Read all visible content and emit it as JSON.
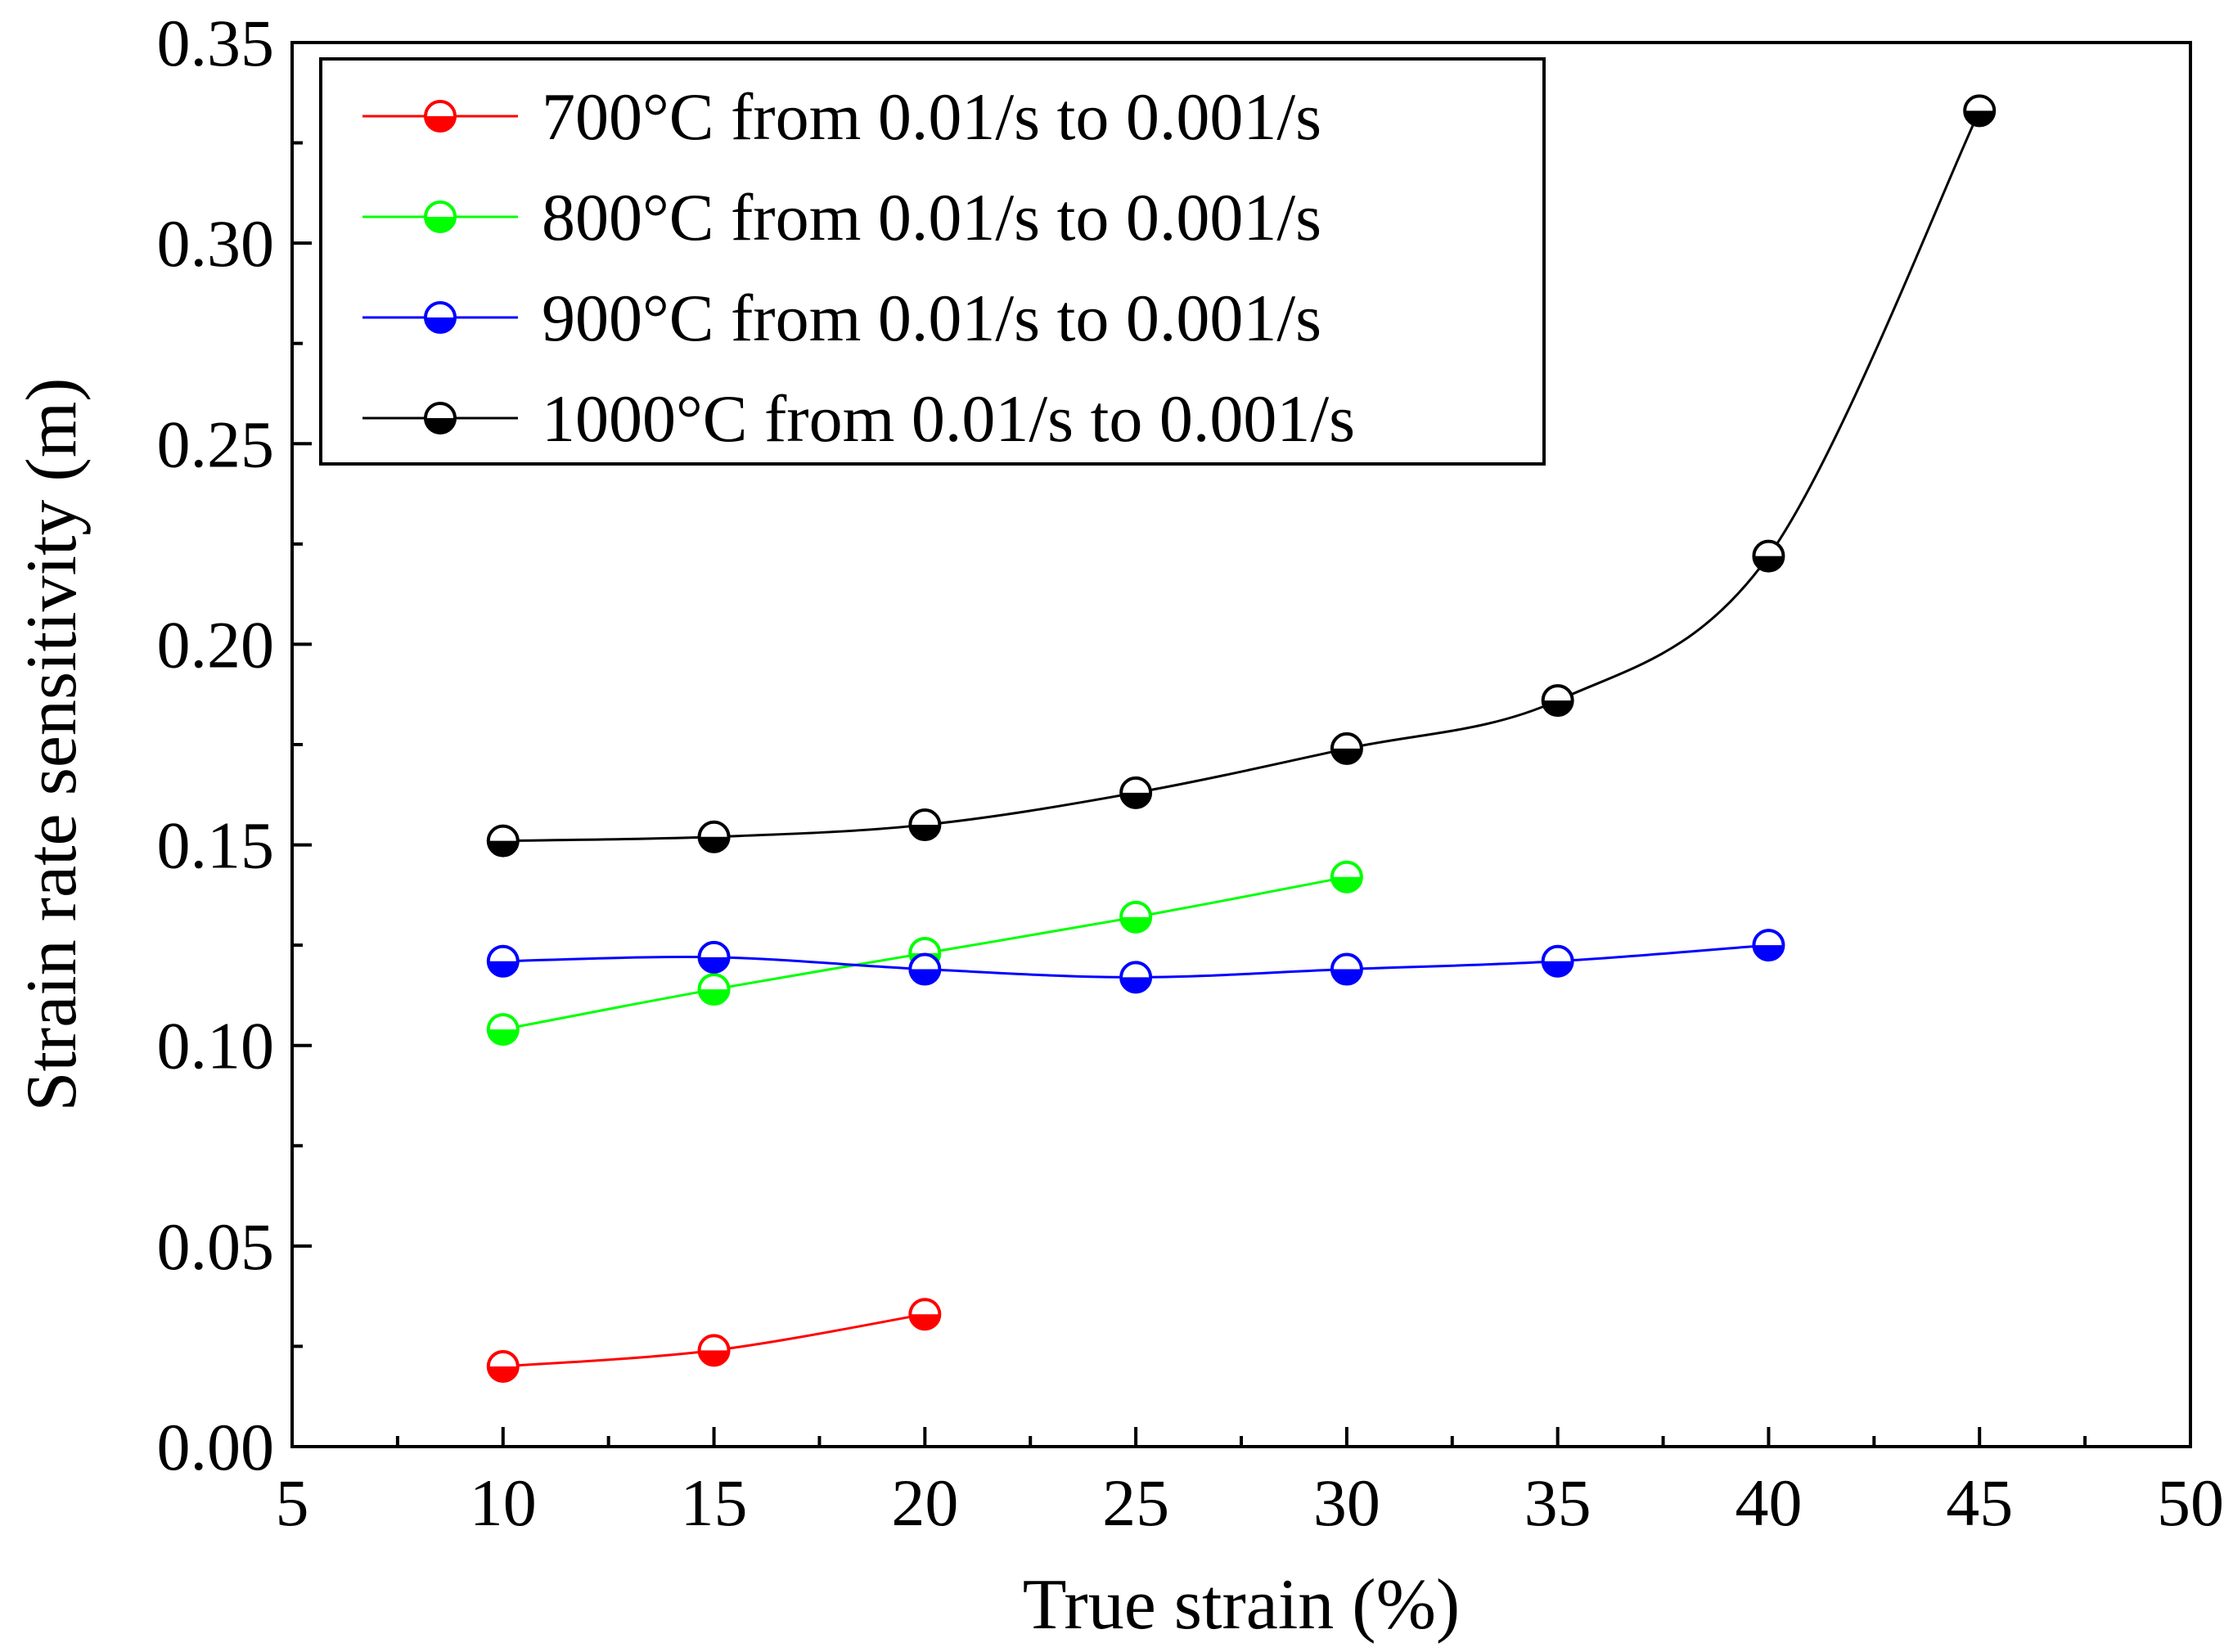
{
  "chart_data": {
    "type": "line",
    "xlabel": "True strain (%)",
    "ylabel": "Strain rate sensitivity (m)",
    "xlim": [
      5,
      50
    ],
    "ylim": [
      0.0,
      0.35
    ],
    "xticks": [
      "5",
      "10",
      "15",
      "20",
      "25",
      "30",
      "35",
      "40",
      "45",
      "50"
    ],
    "yticks": [
      "0.00",
      "0.05",
      "0.10",
      "0.15",
      "0.20",
      "0.25",
      "0.30",
      "0.35"
    ],
    "grid": false,
    "legend_position": "top-left",
    "marker": "half-filled circle",
    "series": [
      {
        "name": "700°C from 0.01/s to 0.001/s",
        "color": "#ff0000",
        "x": [
          10,
          15,
          20
        ],
        "y": [
          0.02,
          0.024,
          0.033
        ]
      },
      {
        "name": "800°C from 0.01/s to 0.001/s",
        "color": "#00ff00",
        "x": [
          10,
          15,
          20,
          25,
          30
        ],
        "y": [
          0.104,
          0.114,
          0.123,
          0.132,
          0.142
        ]
      },
      {
        "name": "900°C from 0.01/s to 0.001/s",
        "color": "#0000ff",
        "x": [
          10,
          15,
          20,
          25,
          30,
          35,
          40
        ],
        "y": [
          0.121,
          0.122,
          0.119,
          0.117,
          0.119,
          0.121,
          0.125
        ]
      },
      {
        "name": "1000°C from 0.01/s to 0.001/s",
        "color": "#000000",
        "x": [
          10,
          15,
          20,
          25,
          30,
          35,
          40,
          45
        ],
        "y": [
          0.151,
          0.152,
          0.155,
          0.163,
          0.174,
          0.186,
          0.222,
          0.333
        ]
      }
    ]
  }
}
